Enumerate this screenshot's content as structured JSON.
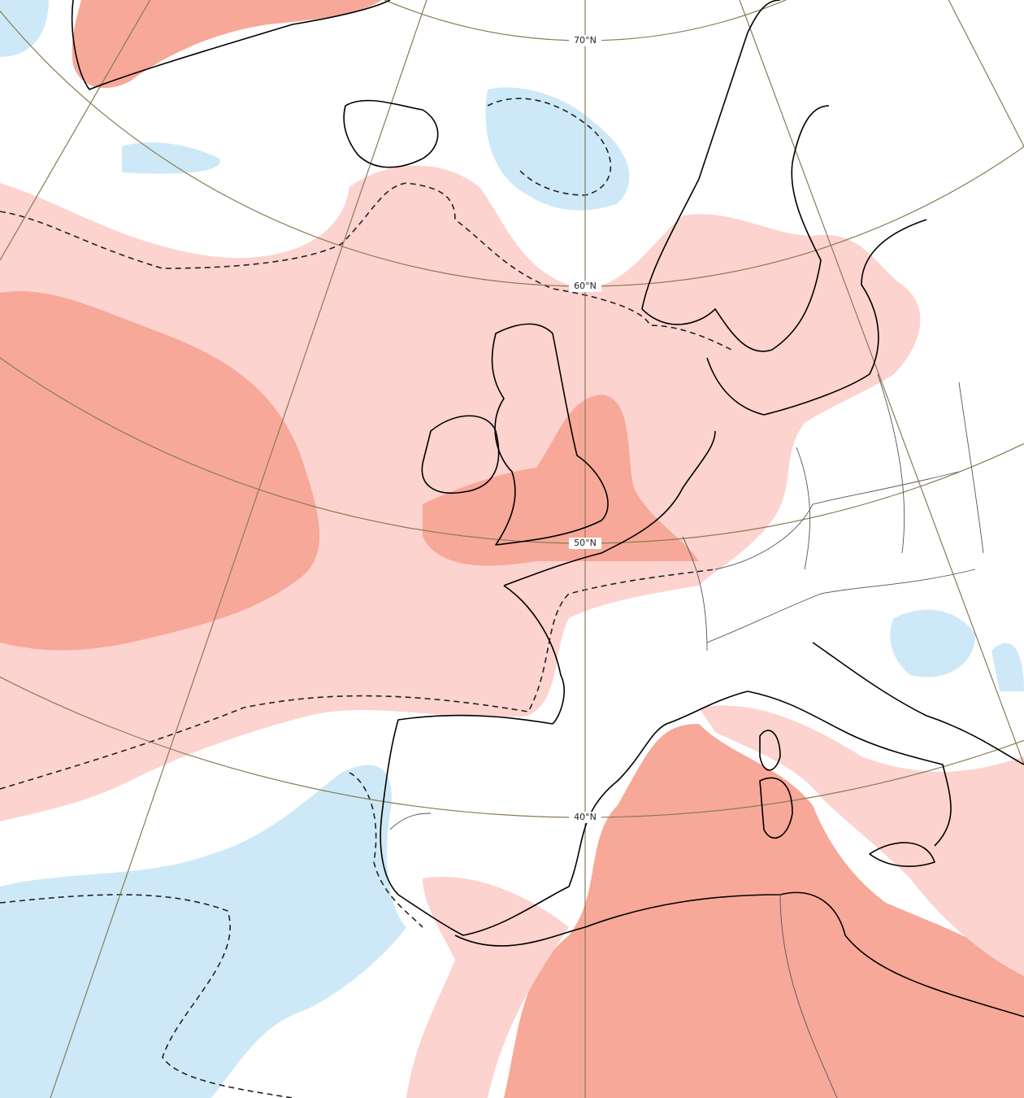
{
  "map": {
    "latitude_labels": [
      "70°N",
      "60°N",
      "50°N",
      "40°N"
    ]
  }
}
